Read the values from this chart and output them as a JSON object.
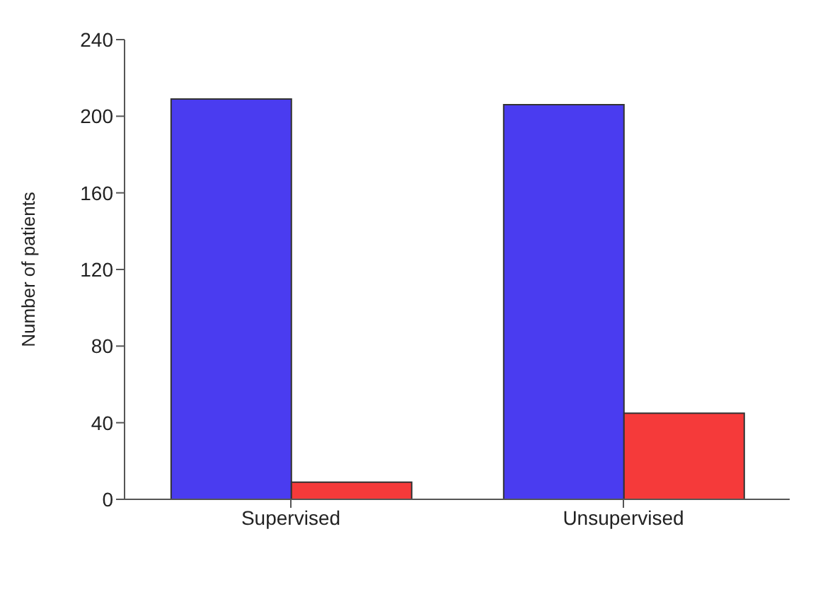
{
  "chart_data": {
    "type": "bar",
    "ylabel": "Number of patients",
    "categories": [
      "Supervised",
      "Unsupervised"
    ],
    "series": [
      {
        "color": "#4a3cf0",
        "values": [
          209,
          206
        ]
      },
      {
        "color": "#f53a3a",
        "values": [
          9,
          45
        ]
      }
    ],
    "ylim": [
      0,
      240
    ],
    "yticks": [
      0,
      40,
      80,
      120,
      160,
      200,
      240
    ],
    "grid": false,
    "legend": false
  }
}
